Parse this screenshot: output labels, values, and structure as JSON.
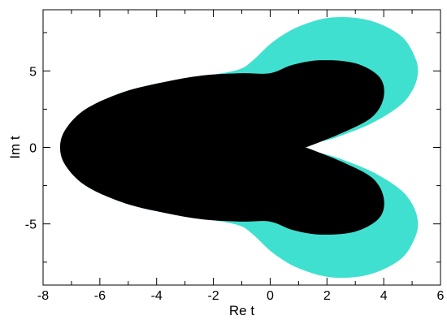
{
  "chart_data": {
    "type": "area",
    "title": "",
    "xlabel": "Re t",
    "ylabel": "Im t",
    "xlim": [
      -8,
      6
    ],
    "ylim": [
      -9,
      9
    ],
    "grid": false,
    "x_ticks": [
      -8,
      -6,
      -4,
      -2,
      0,
      2,
      4,
      6
    ],
    "y_ticks": [
      -5,
      0,
      5
    ],
    "series": [
      {
        "color": "#40e0d0",
        "boundary": [
          [
            -7.4,
            0
          ],
          [
            -7.2,
            1.2
          ],
          [
            -6.5,
            2.5
          ],
          [
            -5.2,
            3.6
          ],
          [
            -3.8,
            4.25
          ],
          [
            -2.2,
            4.7
          ],
          [
            -1.1,
            5.1
          ],
          [
            -0.6,
            5.7
          ],
          [
            0.1,
            6.9
          ],
          [
            1.0,
            7.9
          ],
          [
            2.2,
            8.5
          ],
          [
            3.5,
            8.3
          ],
          [
            4.6,
            7.3
          ],
          [
            5.1,
            5.9
          ],
          [
            5.2,
            4.8
          ],
          [
            5.0,
            3.7
          ],
          [
            4.55,
            2.7
          ],
          [
            3.6,
            1.6
          ],
          [
            2.4,
            0.7
          ],
          [
            1.3,
            0
          ],
          [
            2.4,
            -0.7
          ],
          [
            3.6,
            -1.6
          ],
          [
            4.55,
            -2.7
          ],
          [
            5.0,
            -3.7
          ],
          [
            5.2,
            -4.8
          ],
          [
            5.1,
            -5.9
          ],
          [
            4.6,
            -7.3
          ],
          [
            3.5,
            -8.3
          ],
          [
            2.2,
            -8.5
          ],
          [
            1.0,
            -7.9
          ],
          [
            0.1,
            -6.9
          ],
          [
            -0.6,
            -5.7
          ],
          [
            -1.1,
            -5.1
          ],
          [
            -2.2,
            -4.7
          ],
          [
            -3.8,
            -4.25
          ],
          [
            -5.2,
            -3.6
          ],
          [
            -6.5,
            -2.5
          ],
          [
            -7.2,
            -1.2
          ]
        ]
      },
      {
        "color": "#000000",
        "boundary": [
          [
            -7.4,
            0
          ],
          [
            -7.2,
            1.2
          ],
          [
            -6.5,
            2.5
          ],
          [
            -5.2,
            3.6
          ],
          [
            -3.8,
            4.25
          ],
          [
            -2.4,
            4.7
          ],
          [
            -1.0,
            4.85
          ],
          [
            0.0,
            4.85
          ],
          [
            0.8,
            5.4
          ],
          [
            1.8,
            5.7
          ],
          [
            3.0,
            5.5
          ],
          [
            3.85,
            4.6
          ],
          [
            4.0,
            3.3
          ],
          [
            3.6,
            2.0
          ],
          [
            2.6,
            1.0
          ],
          [
            1.4,
            0.1
          ],
          [
            1.2,
            0
          ],
          [
            1.4,
            -0.1
          ],
          [
            2.6,
            -1.0
          ],
          [
            3.6,
            -2.0
          ],
          [
            4.0,
            -3.3
          ],
          [
            3.85,
            -4.6
          ],
          [
            3.0,
            -5.5
          ],
          [
            1.8,
            -5.7
          ],
          [
            0.8,
            -5.4
          ],
          [
            0.0,
            -4.85
          ],
          [
            -1.0,
            -4.85
          ],
          [
            -2.4,
            -4.7
          ],
          [
            -3.8,
            -4.25
          ],
          [
            -5.2,
            -3.6
          ],
          [
            -6.5,
            -2.5
          ],
          [
            -7.2,
            -1.2
          ]
        ]
      }
    ]
  }
}
